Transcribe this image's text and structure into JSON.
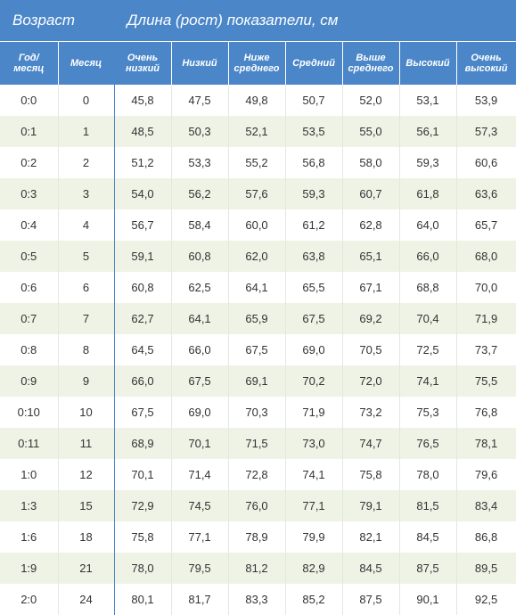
{
  "header": {
    "age_group": "Возраст",
    "measure_group": "Длина (рост) показатели, см",
    "columns": [
      "Год/\nмесяц",
      "Месяц",
      "Очень\nнизкий",
      "Низкий",
      "Ниже\nсреднего",
      "Средний",
      "Выше\nсреднего",
      "Высокий",
      "Очень\nвысокий"
    ]
  },
  "rows": [
    [
      "0:0",
      "0",
      "45,8",
      "47,5",
      "49,8",
      "50,7",
      "52,0",
      "53,1",
      "53,9"
    ],
    [
      "0:1",
      "1",
      "48,5",
      "50,3",
      "52,1",
      "53,5",
      "55,0",
      "56,1",
      "57,3"
    ],
    [
      "0:2",
      "2",
      "51,2",
      "53,3",
      "55,2",
      "56,8",
      "58,0",
      "59,3",
      "60,6"
    ],
    [
      "0:3",
      "3",
      "54,0",
      "56,2",
      "57,6",
      "59,3",
      "60,7",
      "61,8",
      "63,6"
    ],
    [
      "0:4",
      "4",
      "56,7",
      "58,4",
      "60,0",
      "61,2",
      "62,8",
      "64,0",
      "65,7"
    ],
    [
      "0:5",
      "5",
      "59,1",
      "60,8",
      "62,0",
      "63,8",
      "65,1",
      "66,0",
      "68,0"
    ],
    [
      "0:6",
      "6",
      "60,8",
      "62,5",
      "64,1",
      "65,5",
      "67,1",
      "68,8",
      "70,0"
    ],
    [
      "0:7",
      "7",
      "62,7",
      "64,1",
      "65,9",
      "67,5",
      "69,2",
      "70,4",
      "71,9"
    ],
    [
      "0:8",
      "8",
      "64,5",
      "66,0",
      "67,5",
      "69,0",
      "70,5",
      "72,5",
      "73,7"
    ],
    [
      "0:9",
      "9",
      "66,0",
      "67,5",
      "69,1",
      "70,2",
      "72,0",
      "74,1",
      "75,5"
    ],
    [
      "0:10",
      "10",
      "67,5",
      "69,0",
      "70,3",
      "71,9",
      "73,2",
      "75,3",
      "76,8"
    ],
    [
      "0:11",
      "11",
      "68,9",
      "70,1",
      "71,5",
      "73,0",
      "74,7",
      "76,5",
      "78,1"
    ],
    [
      "1:0",
      "12",
      "70,1",
      "71,4",
      "72,8",
      "74,1",
      "75,8",
      "78,0",
      "79,6"
    ],
    [
      "1:3",
      "15",
      "72,9",
      "74,5",
      "76,0",
      "77,1",
      "79,1",
      "81,5",
      "83,4"
    ],
    [
      "1:6",
      "18",
      "75,8",
      "77,1",
      "78,9",
      "79,9",
      "82,1",
      "84,5",
      "86,8"
    ],
    [
      "1:9",
      "21",
      "78,0",
      "79,5",
      "81,2",
      "82,9",
      "84,5",
      "87,5",
      "89,5"
    ],
    [
      "2:0",
      "24",
      "80,1",
      "81,7",
      "83,3",
      "85,2",
      "87,5",
      "90,1",
      "92,5"
    ]
  ]
}
